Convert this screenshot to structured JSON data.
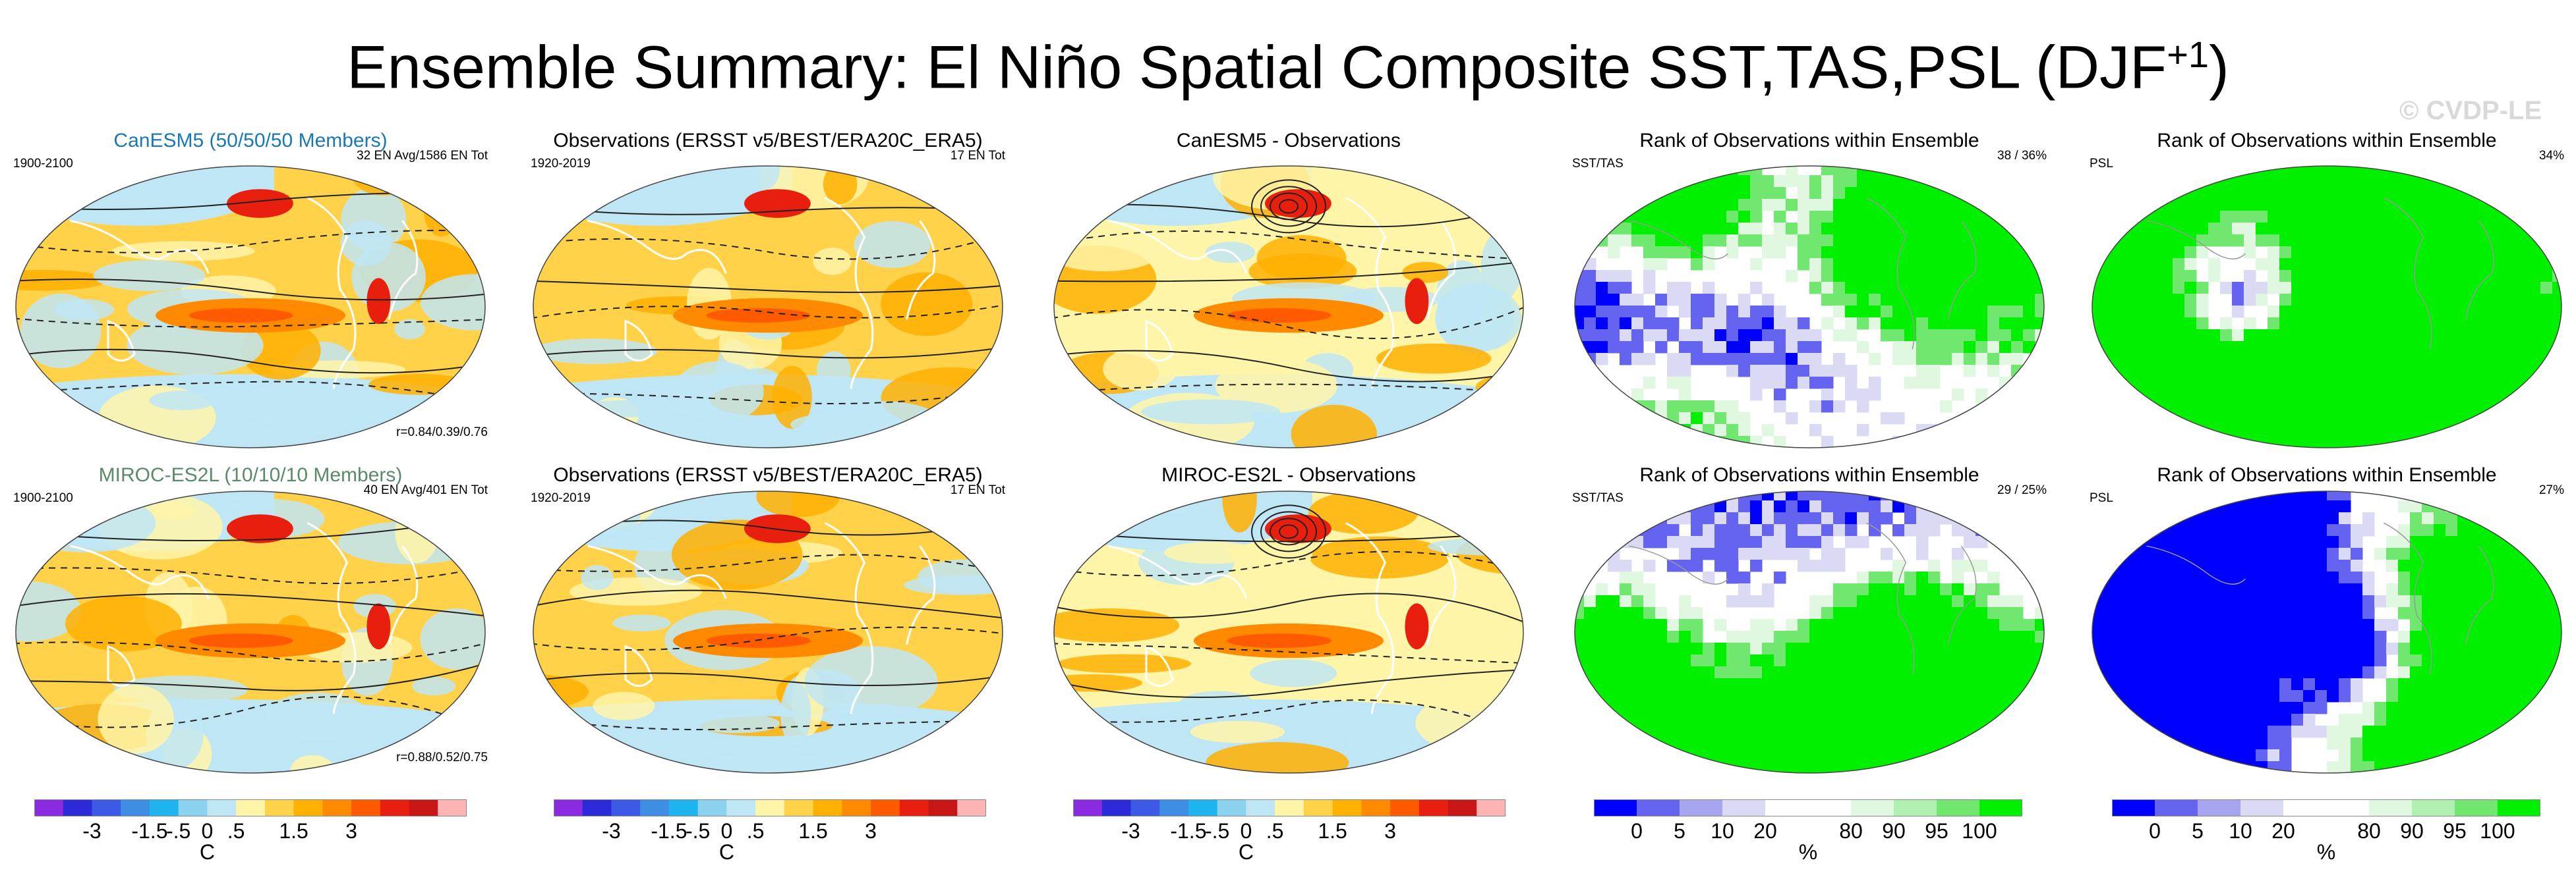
{
  "title": "Ensemble Summary: El Niño Spatial Composite SST,TAS,PSL (DJF",
  "title_sup": "+1",
  "title_close": ")",
  "watermark": "© CVDP-LE",
  "rows": [
    {
      "panels": [
        {
          "title": "CanESM5 (50/50/50 Members)",
          "left": "1900-2100",
          "right": "32 EN Avg/1586 EN Tot",
          "corr": "r=0.84/0.39/0.76",
          "kind": "model"
        },
        {
          "title": "Observations (ERSST v5/BEST/ERA20C_ERA5)",
          "left": "1920-2019",
          "right": "17 EN Tot",
          "corr": "",
          "kind": "obs"
        },
        {
          "title": "CanESM5 - Observations",
          "left": "",
          "right": "",
          "corr": "",
          "kind": "diff"
        },
        {
          "title": "Rank of Observations within Ensemble",
          "left": "SST/TAS",
          "right": "38 /  36%",
          "corr": "",
          "kind": "rank"
        },
        {
          "title": "Rank of Observations within Ensemble",
          "left": "PSL",
          "right": "34%",
          "corr": "",
          "kind": "rank2"
        }
      ]
    },
    {
      "panels": [
        {
          "title": "MIROC-ES2L (10/10/10 Members)",
          "left": "1900-2100",
          "right": "40 EN Avg/401 EN Tot",
          "corr": "r=0.88/0.52/0.75",
          "kind": "model"
        },
        {
          "title": "Observations (ERSST v5/BEST/ERA20C_ERA5)",
          "left": "1920-2019",
          "right": "17 EN Tot",
          "corr": "",
          "kind": "obs"
        },
        {
          "title": "MIROC-ES2L - Observations",
          "left": "",
          "right": "",
          "corr": "",
          "kind": "diff"
        },
        {
          "title": "Rank of Observations within Ensemble",
          "left": "SST/TAS",
          "right": "29 /  25%",
          "corr": "",
          "kind": "rank"
        },
        {
          "title": "Rank of Observations within Ensemble",
          "left": "PSL",
          "right": "27%",
          "corr": "",
          "kind": "rank2"
        }
      ]
    }
  ],
  "chart_data": {
    "type": "heatmap",
    "colorbars": [
      {
        "kind": "temperature",
        "unit": "C",
        "ticks": [
          "-3",
          "-1.5",
          "-.5",
          "0",
          ".5",
          "1.5",
          "3"
        ],
        "colors": [
          "#8a2be2",
          "#2b2bd9",
          "#3c5ae6",
          "#3f8ee6",
          "#1eb4f0",
          "#8ad2f0",
          "#bfe6f5",
          "#fff5a8",
          "#ffd24a",
          "#ffb000",
          "#ff8a00",
          "#ff5a00",
          "#e81e0e",
          "#c81616",
          "#ffb4b4"
        ]
      },
      {
        "kind": "percent",
        "unit": "%",
        "ticks": [
          "0",
          "5",
          "10",
          "20",
          "80",
          "90",
          "95",
          "100"
        ],
        "colors": [
          "#0000ff",
          "#6464f0",
          "#a6a6f0",
          "#dadaf5",
          "#ffffff",
          "#ffffff",
          "#e0f8e0",
          "#b0f0b0",
          "#70e870",
          "#00f000"
        ]
      }
    ],
    "panels_per_row": 5,
    "row_labels": [
      "CanESM5",
      "MIROC-ES2L"
    ]
  },
  "palette": {
    "ocean_warm": "#ffd24a",
    "ocean_pale": "#fff5a8",
    "ocean_cool": "#bfe6f5",
    "hot": "#e81e0e",
    "blue_rank": "#0000ff",
    "green_rank": "#00f000",
    "contour": "#222222"
  }
}
